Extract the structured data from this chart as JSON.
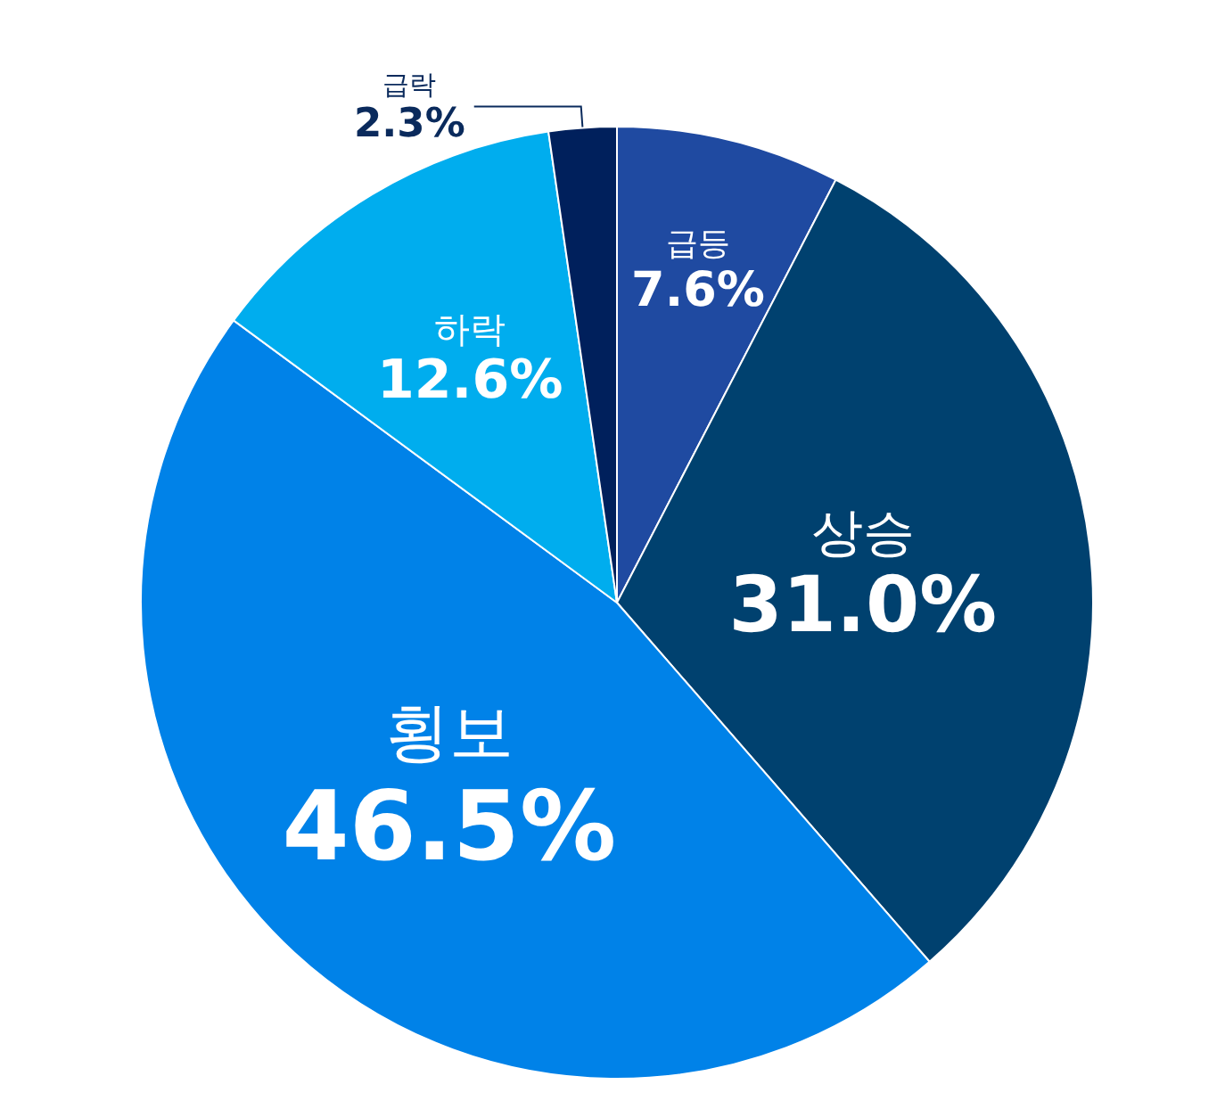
{
  "chart_data": {
    "type": "pie",
    "categories": [
      "급등",
      "상승",
      "횡보",
      "하락",
      "급락"
    ],
    "values": [
      7.6,
      31.0,
      46.5,
      12.6,
      2.3
    ],
    "colors": [
      "#1f4aa1",
      "#00416f",
      "#0082e8",
      "#00adee",
      "#00205c"
    ],
    "value_labels": [
      "7.6%",
      "31.0%",
      "46.5%",
      "12.6%",
      "2.3%"
    ],
    "legend": false
  }
}
